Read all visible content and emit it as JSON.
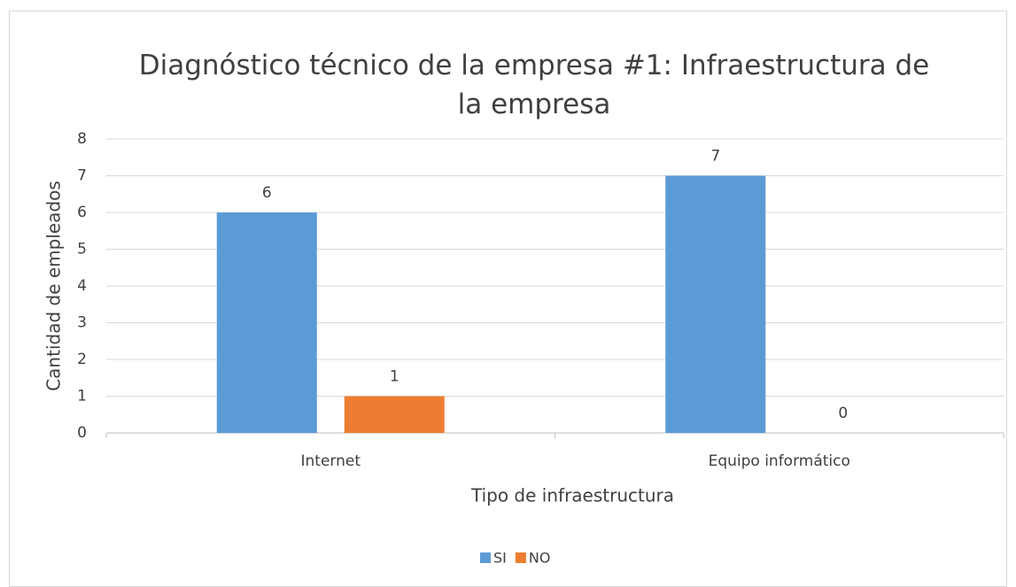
{
  "chart_data": {
    "type": "bar",
    "title": "Diagnóstico técnico de la empresa #1: Infraestructura de la empresa",
    "x_label": "Tipo de infraestructura",
    "y_label": "Cantidad de empleados",
    "categories": [
      "Internet",
      "Equipo informático"
    ],
    "series": [
      {
        "name": "SI",
        "color": "#5b9bd5",
        "values": [
          6,
          7
        ]
      },
      {
        "name": "NO",
        "color": "#ed7d31",
        "values": [
          1,
          0
        ]
      }
    ],
    "ylim": [
      0,
      8
    ],
    "yticks": [
      0,
      1,
      2,
      3,
      4,
      5,
      6,
      7,
      8
    ],
    "grid": true,
    "legend": "bottom"
  }
}
